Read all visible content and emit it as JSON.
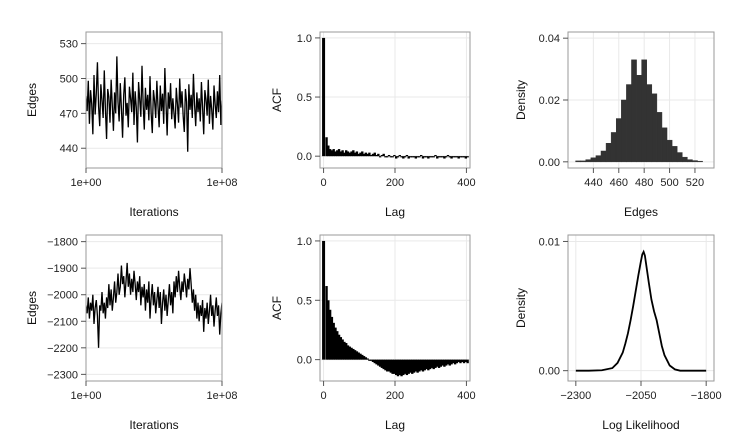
{
  "chart_data": [
    {
      "type": "line",
      "xlabel": "Iterations",
      "ylabel": "Edges",
      "xlim": [
        0,
        1
      ],
      "ylim": [
        423,
        540
      ],
      "x_ticks": [
        {
          "value": 0,
          "label": "1e+00"
        },
        {
          "value": 1,
          "label": "1e+08"
        }
      ],
      "y_ticks": [
        {
          "value": 440,
          "label": "440"
        },
        {
          "value": 470,
          "label": "470"
        },
        {
          "value": 500,
          "label": "500"
        },
        {
          "value": 530,
          "label": "530"
        }
      ],
      "grid": true,
      "series": [
        {
          "values": [
            485,
            472,
            498,
            461,
            490,
            478,
            452,
            503,
            469,
            487,
            514,
            476,
            459,
            495,
            481,
            466,
            507,
            473,
            448,
            491,
            484,
            462,
            499,
            477,
            455,
            488,
            470,
            519,
            480,
            463,
            496,
            474,
            449,
            486,
            501,
            468,
            479,
            458,
            493,
            483,
            471,
            505,
            460,
            489,
            475,
            445,
            497,
            482,
            467,
            511,
            478,
            456,
            492,
            473,
            486,
            464,
            502,
            470,
            453,
            490,
            481,
            466,
            498,
            476,
            458,
            494,
            472,
            487,
            461,
            509,
            479,
            451,
            488,
            474,
            496,
            465,
            483,
            470,
            457,
            492,
            478,
            462,
            500,
            475,
            489,
            468,
            454,
            491,
            480,
            437,
            495,
            473,
            486,
            466,
            504,
            477,
            459,
            488,
            471,
            483,
            463,
            497,
            475,
            452,
            490,
            482,
            468,
            499,
            461,
            485,
            473,
            456,
            494,
            478,
            466,
            489,
            471,
            503,
            460,
            481
          ]
        }
      ]
    },
    {
      "type": "bar",
      "xlabel": "Lag",
      "ylabel": "ACF",
      "xlim": [
        -10,
        410
      ],
      "ylim": [
        -0.1,
        1.05
      ],
      "x_ticks": [
        {
          "value": 0,
          "label": "0"
        },
        {
          "value": 200,
          "label": "200"
        },
        {
          "value": 400,
          "label": "400"
        }
      ],
      "y_ticks": [
        {
          "value": 0,
          "label": "0.0"
        },
        {
          "value": 0.5,
          "label": "0.5"
        },
        {
          "value": 1,
          "label": "1.0"
        }
      ],
      "grid": true,
      "series": [
        {
          "values": [
            1.0,
            0.16,
            0.09,
            0.06,
            0.05,
            0.06,
            0.04,
            0.05,
            0.06,
            0.04,
            0.05,
            0.03,
            0.05,
            0.04,
            0.03,
            0.04,
            0.05,
            0.03,
            0.04,
            0.02,
            0.03,
            0.04,
            0.02,
            0.03,
            0.02,
            0.03,
            0.01,
            0.02,
            0.03,
            0.01,
            0.02,
            0.0,
            0.01,
            0.02,
            -0.01,
            0.0,
            0.01,
            -0.01,
            0.0,
            0.01,
            -0.02,
            0.0,
            0.01,
            -0.01,
            -0.02,
            0.0,
            0.01,
            -0.02,
            -0.01,
            0.0,
            -0.01,
            -0.02,
            0.0,
            -0.01,
            0.01,
            -0.02,
            -0.01,
            0.0,
            -0.02,
            -0.01,
            0.0,
            -0.01,
            0.01,
            -0.02,
            -0.01,
            0.0,
            -0.01,
            -0.02,
            0.0,
            0.01,
            -0.01,
            -0.02,
            0.0,
            -0.01,
            0.0,
            -0.02,
            -0.01,
            0.0,
            -0.01,
            -0.02,
            0.0
          ]
        }
      ]
    },
    {
      "type": "bar",
      "xlabel": "Edges",
      "ylabel": "Density",
      "xlim": [
        420,
        535
      ],
      "ylim": [
        -0.002,
        0.042
      ],
      "x_ticks": [
        {
          "value": 440,
          "label": "440"
        },
        {
          "value": 460,
          "label": "460"
        },
        {
          "value": 480,
          "label": "480"
        },
        {
          "value": 500,
          "label": "500"
        },
        {
          "value": 520,
          "label": "520"
        }
      ],
      "y_ticks": [
        {
          "value": 0,
          "label": "0.00"
        },
        {
          "value": 0.02,
          "label": "0.02"
        },
        {
          "value": 0.04,
          "label": "0.04"
        }
      ],
      "grid": true,
      "bins": [
        {
          "x0": 426,
          "x1": 430,
          "value": 0.0003
        },
        {
          "x0": 430,
          "x1": 434,
          "value": 0.0003
        },
        {
          "x0": 434,
          "x1": 438,
          "value": 0.0007
        },
        {
          "x0": 438,
          "x1": 442,
          "value": 0.0013
        },
        {
          "x0": 442,
          "x1": 446,
          "value": 0.002
        },
        {
          "x0": 446,
          "x1": 450,
          "value": 0.0035
        },
        {
          "x0": 450,
          "x1": 454,
          "value": 0.006
        },
        {
          "x0": 454,
          "x1": 458,
          "value": 0.0095
        },
        {
          "x0": 458,
          "x1": 462,
          "value": 0.014
        },
        {
          "x0": 462,
          "x1": 466,
          "value": 0.02
        },
        {
          "x0": 466,
          "x1": 470,
          "value": 0.025
        },
        {
          "x0": 470,
          "x1": 474,
          "value": 0.033
        },
        {
          "x0": 474,
          "x1": 478,
          "value": 0.028
        },
        {
          "x0": 478,
          "x1": 482,
          "value": 0.033
        },
        {
          "x0": 482,
          "x1": 486,
          "value": 0.025
        },
        {
          "x0": 486,
          "x1": 490,
          "value": 0.022
        },
        {
          "x0": 490,
          "x1": 494,
          "value": 0.016
        },
        {
          "x0": 494,
          "x1": 498,
          "value": 0.011
        },
        {
          "x0": 498,
          "x1": 502,
          "value": 0.007
        },
        {
          "x0": 502,
          "x1": 506,
          "value": 0.005
        },
        {
          "x0": 506,
          "x1": 510,
          "value": 0.003
        },
        {
          "x0": 510,
          "x1": 514,
          "value": 0.0015
        },
        {
          "x0": 514,
          "x1": 518,
          "value": 0.0007
        },
        {
          "x0": 518,
          "x1": 522,
          "value": 0.0004
        },
        {
          "x0": 522,
          "x1": 526,
          "value": 0.0002
        }
      ]
    },
    {
      "type": "line",
      "xlabel": "Iterations",
      "ylabel": "Edges",
      "xlim": [
        0,
        1
      ],
      "ylim": [
        -2325,
        -1775
      ],
      "x_ticks": [
        {
          "value": 0,
          "label": "1e+00"
        },
        {
          "value": 1,
          "label": "1e+08"
        }
      ],
      "y_ticks": [
        {
          "value": -2300,
          "label": "−2300"
        },
        {
          "value": -2200,
          "label": "−2200"
        },
        {
          "value": -2100,
          "label": "−2100"
        },
        {
          "value": -2000,
          "label": "−2000"
        },
        {
          "value": -1900,
          "label": "−1900"
        },
        {
          "value": -1800,
          "label": "−1800"
        }
      ],
      "grid": true,
      "series": [
        {
          "values": [
            -2040,
            -2070,
            -2010,
            -2090,
            -2030,
            -2060,
            -2000,
            -2110,
            -2050,
            -2020,
            -2080,
            -2200,
            -2040,
            -2060,
            -1990,
            -2070,
            -2030,
            -2090,
            -2010,
            -2050,
            -1960,
            -2040,
            -1980,
            -2060,
            -2010,
            -1950,
            -2030,
            -1990,
            -1920,
            -2000,
            -1970,
            -1890,
            -1960,
            -1930,
            -2010,
            -1950,
            -1880,
            -1970,
            -1920,
            -2000,
            -1940,
            -1990,
            -1910,
            -1960,
            -2020,
            -1950,
            -1990,
            -1930,
            -2040,
            -1970,
            -2010,
            -1960,
            -2060,
            -1980,
            -2030,
            -1950,
            -2090,
            -2010,
            -1960,
            -2040,
            -1990,
            -2070,
            -2020,
            -1970,
            -2050,
            -1990,
            -2110,
            -2030,
            -1980,
            -2060,
            -2000,
            -2080,
            -2020,
            -1960,
            -2040,
            -1990,
            -2070,
            -1950,
            -2010,
            -1930,
            -1990,
            -1910,
            -1970,
            -2020,
            -1950,
            -1990,
            -1920,
            -1960,
            -2010,
            -1940,
            -1980,
            -1900,
            -1960,
            -2030,
            -1980,
            -2060,
            -2000,
            -2090,
            -2030,
            -2100,
            -2040,
            -2080,
            -2020,
            -2140,
            -2050,
            -2090,
            -2030,
            -2110,
            -2060,
            -2000,
            -2080,
            -2040,
            -2120,
            -2060,
            -2010,
            -2080,
            -2040,
            -2150,
            -2070,
            -2030
          ]
        }
      ]
    },
    {
      "type": "bar",
      "xlabel": "Lag",
      "ylabel": "ACF",
      "xlim": [
        -10,
        410
      ],
      "ylim": [
        -0.18,
        1.05
      ],
      "x_ticks": [
        {
          "value": 0,
          "label": "0"
        },
        {
          "value": 200,
          "label": "200"
        },
        {
          "value": 400,
          "label": "400"
        }
      ],
      "y_ticks": [
        {
          "value": 0,
          "label": "0.0"
        },
        {
          "value": 0.5,
          "label": "0.5"
        },
        {
          "value": 1,
          "label": "1.0"
        }
      ],
      "grid": true,
      "series": [
        {
          "values": [
            1.0,
            0.62,
            0.5,
            0.42,
            0.36,
            0.31,
            0.27,
            0.24,
            0.21,
            0.19,
            0.17,
            0.15,
            0.14,
            0.12,
            0.11,
            0.1,
            0.09,
            0.08,
            0.07,
            0.06,
            0.05,
            0.04,
            0.03,
            0.02,
            0.01,
            0.0,
            -0.01,
            -0.02,
            -0.03,
            -0.04,
            -0.05,
            -0.06,
            -0.07,
            -0.08,
            -0.09,
            -0.1,
            -0.1,
            -0.11,
            -0.12,
            -0.12,
            -0.13,
            -0.14,
            -0.13,
            -0.14,
            -0.13,
            -0.12,
            -0.13,
            -0.12,
            -0.11,
            -0.12,
            -0.11,
            -0.1,
            -0.11,
            -0.1,
            -0.09,
            -0.1,
            -0.09,
            -0.08,
            -0.09,
            -0.08,
            -0.07,
            -0.08,
            -0.07,
            -0.06,
            -0.07,
            -0.06,
            -0.05,
            -0.06,
            -0.05,
            -0.04,
            -0.05,
            -0.04,
            -0.03,
            -0.04,
            -0.03,
            -0.02,
            -0.03,
            -0.02,
            -0.03,
            -0.02,
            -0.03
          ]
        }
      ]
    },
    {
      "type": "line",
      "xlabel": "Log Likelihood",
      "ylabel": "Density",
      "xlim": [
        -2330,
        -1770
      ],
      "ylim": [
        -0.0008,
        0.0105
      ],
      "x_ticks": [
        {
          "value": -2300,
          "label": "−2300"
        },
        {
          "value": -2050,
          "label": "−2050"
        },
        {
          "value": -1800,
          "label": "−1800"
        }
      ],
      "y_ticks": [
        {
          "value": 0,
          "label": "0.00"
        },
        {
          "value": 0.01,
          "label": "0.01"
        }
      ],
      "grid": true,
      "series": [
        {
          "x": [
            -2300,
            -2250,
            -2200,
            -2160,
            -2140,
            -2120,
            -2110,
            -2100,
            -2090,
            -2080,
            -2070,
            -2060,
            -2050,
            -2045,
            -2040,
            -2035,
            -2030,
            -2020,
            -2010,
            -2000,
            -1990,
            -1980,
            -1970,
            -1960,
            -1950,
            -1940,
            -1920,
            -1900,
            -1850,
            -1800
          ],
          "values": [
            0.0,
            0.0,
            3e-05,
            0.0002,
            0.0006,
            0.0014,
            0.0021,
            0.0029,
            0.0039,
            0.005,
            0.0062,
            0.0074,
            0.0085,
            0.009,
            0.0092,
            0.0089,
            0.0082,
            0.0068,
            0.0055,
            0.0046,
            0.0039,
            0.0029,
            0.0019,
            0.0012,
            0.0008,
            0.0004,
            0.0001,
            0.0,
            0.0,
            0.0
          ]
        }
      ]
    }
  ]
}
